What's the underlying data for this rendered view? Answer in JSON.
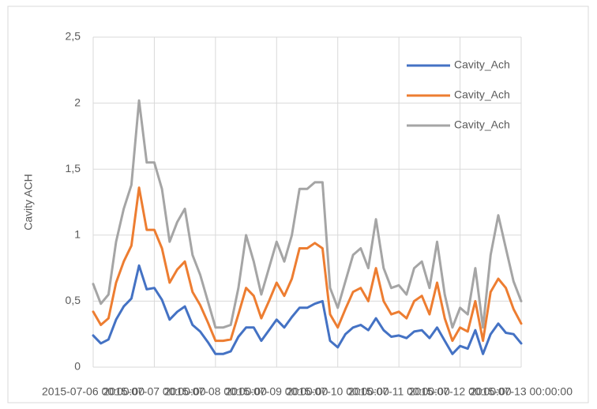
{
  "chart_data": {
    "type": "line",
    "y_label": "Cavity ACH",
    "categories": [
      "2015-07-06 00:00:00",
      null,
      null,
      null,
      null,
      null,
      null,
      null,
      "2015-07-07 00:00:00",
      null,
      null,
      null,
      null,
      null,
      null,
      null,
      "2015-07-08 00:00:00",
      null,
      null,
      null,
      null,
      null,
      null,
      null,
      "2015-07-09 00:00:00",
      null,
      null,
      null,
      null,
      null,
      null,
      null,
      "2015-07-10 00:00:00",
      null,
      null,
      null,
      null,
      null,
      null,
      null,
      "2015-07-11 00:00:00",
      null,
      null,
      null,
      null,
      null,
      null,
      null,
      "2015-07-12 00:00:00",
      null,
      null,
      null,
      null,
      null,
      null,
      null,
      "2015-07-13 00:00:00"
    ],
    "series": [
      {
        "name": "Cavity_Ach",
        "color": "#4472c4",
        "values": [
          0.24,
          0.18,
          0.21,
          0.36,
          0.46,
          0.52,
          0.77,
          0.59,
          0.6,
          0.51,
          0.36,
          0.42,
          0.46,
          0.32,
          0.27,
          0.19,
          0.1,
          0.1,
          0.12,
          0.23,
          0.3,
          0.3,
          0.2,
          0.28,
          0.36,
          0.3,
          0.38,
          0.45,
          0.45,
          0.48,
          0.5,
          0.2,
          0.15,
          0.25,
          0.3,
          0.32,
          0.28,
          0.37,
          0.28,
          0.23,
          0.24,
          0.22,
          0.27,
          0.28,
          0.22,
          0.3,
          0.2,
          0.1,
          0.16,
          0.14,
          0.28,
          0.1,
          0.25,
          0.33,
          0.26,
          0.25,
          0.18
        ]
      },
      {
        "name": "Cavity_Ach",
        "color": "#ed7d31",
        "values": [
          0.42,
          0.32,
          0.37,
          0.64,
          0.8,
          0.92,
          1.36,
          1.04,
          1.04,
          0.9,
          0.64,
          0.74,
          0.8,
          0.57,
          0.47,
          0.34,
          0.2,
          0.2,
          0.21,
          0.4,
          0.6,
          0.54,
          0.37,
          0.5,
          0.64,
          0.54,
          0.67,
          0.9,
          0.9,
          0.94,
          0.9,
          0.4,
          0.3,
          0.44,
          0.57,
          0.6,
          0.5,
          0.75,
          0.5,
          0.4,
          0.42,
          0.37,
          0.5,
          0.54,
          0.4,
          0.64,
          0.37,
          0.2,
          0.3,
          0.27,
          0.5,
          0.2,
          0.57,
          0.67,
          0.6,
          0.44,
          0.33
        ]
      },
      {
        "name": "Cavity_Ach",
        "color": "#a5a5a5",
        "values": [
          0.63,
          0.48,
          0.55,
          0.95,
          1.2,
          1.38,
          2.02,
          1.55,
          1.55,
          1.35,
          0.95,
          1.1,
          1.2,
          0.85,
          0.7,
          0.5,
          0.3,
          0.3,
          0.32,
          0.6,
          1.0,
          0.8,
          0.55,
          0.75,
          0.95,
          0.8,
          1.0,
          1.35,
          1.35,
          1.4,
          1.4,
          0.6,
          0.45,
          0.65,
          0.85,
          0.9,
          0.75,
          1.12,
          0.75,
          0.6,
          0.62,
          0.55,
          0.75,
          0.8,
          0.6,
          0.95,
          0.55,
          0.3,
          0.45,
          0.4,
          0.75,
          0.3,
          0.85,
          1.15,
          0.9,
          0.65,
          0.5
        ]
      }
    ],
    "ylim": [
      0,
      2.5
    ],
    "yticks": [
      0,
      {
        "value": 0.5,
        "label": "0,5"
      },
      1,
      {
        "value": 1.5,
        "label": "1,5"
      },
      2,
      {
        "value": 2.5,
        "label": "2,5"
      }
    ],
    "grid": true,
    "legend": "right"
  }
}
